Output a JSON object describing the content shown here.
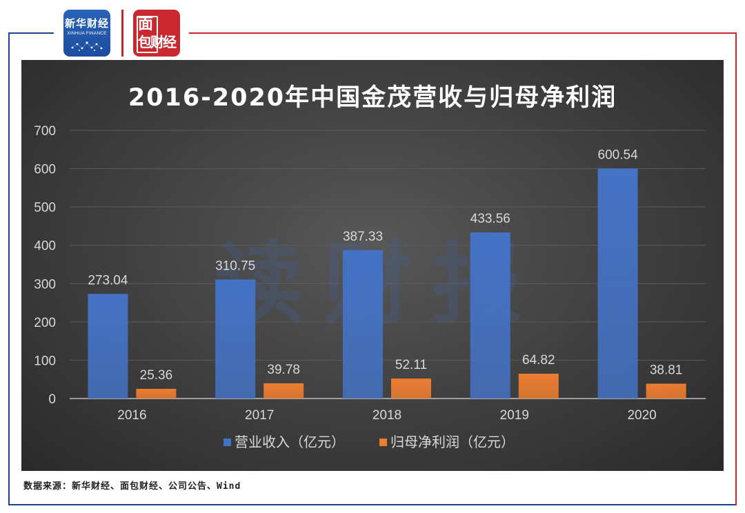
{
  "logos": {
    "xinhua": {
      "cn": "新华财经",
      "en": "XINHUA FINANCE"
    },
    "mianbao": {
      "line1": "面",
      "line2": "包财经"
    }
  },
  "watermark": "读财报",
  "source": "数据来源：新华财经、面包财经、公司公告、Wind",
  "colors": {
    "revenue": "#4472c4",
    "profit": "#ed7d31",
    "frame_left": "#1f3f8f",
    "frame_right": "#c0282d"
  },
  "chart_data": {
    "type": "bar",
    "title": "2016-2020年中国金茂营收与归母净利润",
    "categories": [
      "2016",
      "2017",
      "2018",
      "2019",
      "2020"
    ],
    "series": [
      {
        "name": "营业收入（亿元）",
        "values": [
          273.04,
          310.75,
          387.33,
          433.56,
          600.54
        ],
        "labels": [
          "273.04",
          "310.75",
          "387.33",
          "433.56",
          "600.54"
        ]
      },
      {
        "name": "归母净利润（亿元）",
        "values": [
          25.36,
          39.78,
          52.11,
          64.82,
          38.81
        ],
        "labels": [
          "25.36",
          "39.78",
          "52.11",
          "64.82",
          "38.81"
        ]
      }
    ],
    "yticks": [
      "0",
      "100",
      "200",
      "300",
      "400",
      "500",
      "600",
      "700"
    ],
    "ylim": [
      0,
      700
    ],
    "grid": true,
    "legend_position": "bottom"
  }
}
